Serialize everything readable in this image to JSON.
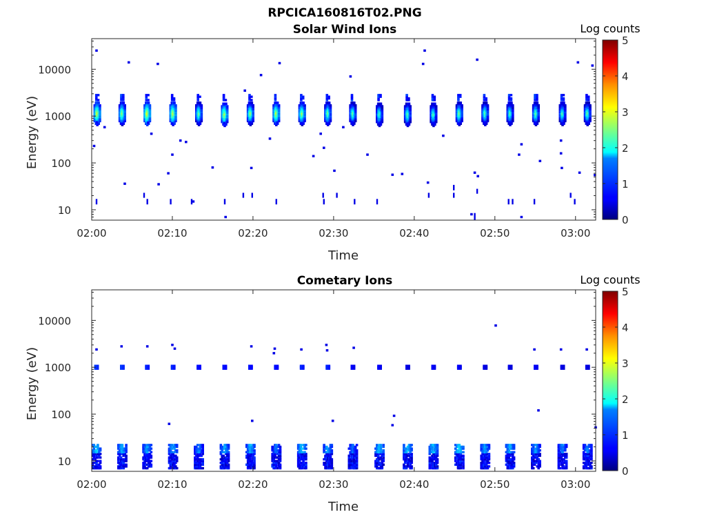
{
  "figure_title": "RPCICA160816T02.PNG",
  "chart_data": [
    {
      "type": "heatmap",
      "title": "Solar Wind Ions",
      "xlabel": "Time",
      "ylabel": "Energy (eV)",
      "x_ticks": [
        "02:00",
        "02:10",
        "02:20",
        "02:30",
        "02:40",
        "02:50",
        "03:00"
      ],
      "x_range": [
        "02:00",
        "03:02.5"
      ],
      "y_ticks": [
        10,
        100,
        1000,
        10000
      ],
      "y_tick_labels": [
        "10",
        "100",
        "1000",
        "10000"
      ],
      "y_scale": "log",
      "y_range": [
        6,
        45000
      ],
      "colorbar": {
        "label": "Log counts",
        "range": [
          0,
          5
        ],
        "ticks": [
          "0",
          "1",
          "2",
          "3",
          "4",
          "5"
        ],
        "colormap": "jet"
      },
      "sweep_period_min": 3.2,
      "bursts": [
        {
          "t": 0.7,
          "e_center": 1150,
          "peak": 3.0
        },
        {
          "t": 3.8,
          "e_center": 1150,
          "peak": 2.8
        },
        {
          "t": 6.9,
          "e_center": 1150,
          "peak": 3.1
        },
        {
          "t": 10.1,
          "e_center": 1150,
          "peak": 3.0
        },
        {
          "t": 13.3,
          "e_center": 1150,
          "peak": 2.6
        },
        {
          "t": 16.5,
          "e_center": 1100,
          "peak": 2.9
        },
        {
          "t": 19.7,
          "e_center": 1150,
          "peak": 2.7
        },
        {
          "t": 22.9,
          "e_center": 1150,
          "peak": 2.9
        },
        {
          "t": 26.1,
          "e_center": 1150,
          "peak": 2.8
        },
        {
          "t": 29.3,
          "e_center": 1150,
          "peak": 2.6
        },
        {
          "t": 32.4,
          "e_center": 1150,
          "peak": 2.5
        },
        {
          "t": 35.7,
          "e_center": 1100,
          "peak": 2.4
        },
        {
          "t": 39.2,
          "e_center": 1100,
          "peak": 2.5
        },
        {
          "t": 42.4,
          "e_center": 1100,
          "peak": 2.4
        },
        {
          "t": 45.6,
          "e_center": 1150,
          "peak": 2.6
        },
        {
          "t": 48.8,
          "e_center": 1150,
          "peak": 2.5
        },
        {
          "t": 51.9,
          "e_center": 1150,
          "peak": 2.4
        },
        {
          "t": 55.1,
          "e_center": 1150,
          "peak": 2.5
        },
        {
          "t": 58.4,
          "e_center": 1150,
          "peak": 2.4
        },
        {
          "t": 61.5,
          "e_center": 1150,
          "peak": 2.5
        }
      ],
      "scattered_points": [
        {
          "t": 0.6,
          "e": 25000
        },
        {
          "t": 4.6,
          "e": 14000
        },
        {
          "t": 8.2,
          "e": 13000
        },
        {
          "t": 19.0,
          "e": 3500
        },
        {
          "t": 21.0,
          "e": 7500
        },
        {
          "t": 23.3,
          "e": 13500
        },
        {
          "t": 32.1,
          "e": 7000
        },
        {
          "t": 41.3,
          "e": 25000
        },
        {
          "t": 41.1,
          "e": 13000
        },
        {
          "t": 47.8,
          "e": 16000
        },
        {
          "t": 60.3,
          "e": 14000
        },
        {
          "t": 62.1,
          "e": 12000
        },
        {
          "t": 0.3,
          "e": 230
        },
        {
          "t": 1.6,
          "e": 580
        },
        {
          "t": 7.4,
          "e": 420
        },
        {
          "t": 10.0,
          "e": 150
        },
        {
          "t": 11.0,
          "e": 300
        },
        {
          "t": 11.7,
          "e": 280
        },
        {
          "t": 9.5,
          "e": 60
        },
        {
          "t": 15.0,
          "e": 80
        },
        {
          "t": 19.8,
          "e": 78
        },
        {
          "t": 22.1,
          "e": 330
        },
        {
          "t": 27.5,
          "e": 140
        },
        {
          "t": 28.4,
          "e": 420
        },
        {
          "t": 28.8,
          "e": 210
        },
        {
          "t": 30.1,
          "e": 68
        },
        {
          "t": 31.2,
          "e": 580
        },
        {
          "t": 34.2,
          "e": 150
        },
        {
          "t": 37.3,
          "e": 56
        },
        {
          "t": 38.5,
          "e": 58
        },
        {
          "t": 41.7,
          "e": 38
        },
        {
          "t": 43.6,
          "e": 380
        },
        {
          "t": 47.5,
          "e": 62
        },
        {
          "t": 47.9,
          "e": 52
        },
        {
          "t": 53.0,
          "e": 150
        },
        {
          "t": 53.3,
          "e": 250
        },
        {
          "t": 55.6,
          "e": 110
        },
        {
          "t": 58.2,
          "e": 300
        },
        {
          "t": 58.2,
          "e": 160
        },
        {
          "t": 58.3,
          "e": 78
        },
        {
          "t": 60.5,
          "e": 62
        },
        {
          "t": 62.4,
          "e": 55
        },
        {
          "t": 4.1,
          "e": 36
        },
        {
          "t": 8.3,
          "e": 35
        },
        {
          "t": 12.6,
          "e": 15
        },
        {
          "t": 16.6,
          "e": 7
        },
        {
          "t": 47.1,
          "e": 8
        },
        {
          "t": 53.3,
          "e": 7
        }
      ],
      "low_energy_streaks": [
        {
          "t": 0.6,
          "e_low": 13,
          "e_high": 17
        },
        {
          "t": 6.5,
          "e_low": 18,
          "e_high": 23
        },
        {
          "t": 6.9,
          "e_low": 13,
          "e_high": 17
        },
        {
          "t": 9.8,
          "e_low": 13,
          "e_high": 17
        },
        {
          "t": 12.4,
          "e_low": 13,
          "e_high": 17
        },
        {
          "t": 16.5,
          "e_low": 13,
          "e_high": 17
        },
        {
          "t": 18.8,
          "e_low": 18,
          "e_high": 23
        },
        {
          "t": 19.9,
          "e_low": 18,
          "e_high": 23
        },
        {
          "t": 22.9,
          "e_low": 13,
          "e_high": 17
        },
        {
          "t": 28.7,
          "e_low": 18,
          "e_high": 23
        },
        {
          "t": 28.8,
          "e_low": 13,
          "e_high": 17
        },
        {
          "t": 30.4,
          "e_low": 18,
          "e_high": 23
        },
        {
          "t": 32.6,
          "e_low": 13,
          "e_high": 17
        },
        {
          "t": 35.4,
          "e_low": 13,
          "e_high": 17
        },
        {
          "t": 41.8,
          "e_low": 18,
          "e_high": 23
        },
        {
          "t": 44.9,
          "e_low": 26,
          "e_high": 34
        },
        {
          "t": 44.9,
          "e_low": 18,
          "e_high": 23
        },
        {
          "t": 47.5,
          "e_low": 6,
          "e_high": 8.5
        },
        {
          "t": 47.8,
          "e_low": 22,
          "e_high": 28
        },
        {
          "t": 51.7,
          "e_low": 13,
          "e_high": 17
        },
        {
          "t": 52.2,
          "e_low": 13,
          "e_high": 17
        },
        {
          "t": 54.9,
          "e_low": 13,
          "e_high": 17
        },
        {
          "t": 59.4,
          "e_low": 18,
          "e_high": 23
        },
        {
          "t": 59.9,
          "e_low": 13,
          "e_high": 17
        }
      ]
    },
    {
      "type": "heatmap",
      "title": "Cometary Ions",
      "xlabel": "Time",
      "ylabel": "Energy (eV)",
      "x_ticks": [
        "02:00",
        "02:10",
        "02:20",
        "02:30",
        "02:40",
        "02:50",
        "03:00"
      ],
      "x_range": [
        "02:00",
        "03:02.5"
      ],
      "y_ticks": [
        10,
        100,
        1000,
        10000
      ],
      "y_tick_labels": [
        "10",
        "100",
        "1000",
        "10000"
      ],
      "y_scale": "log",
      "y_range": [
        6,
        45000
      ],
      "colorbar": {
        "label": "Log counts",
        "range": [
          0,
          5
        ],
        "ticks": [
          "0",
          "1",
          "2",
          "3",
          "4",
          "5"
        ],
        "colormap": "jet"
      },
      "sweep_period_min": 3.2,
      "bursts": [
        {
          "t": 0.6,
          "peak_1k": 0.9,
          "peak_low": 1.6
        },
        {
          "t": 3.8,
          "peak_1k": 0.9,
          "peak_low": 1.5
        },
        {
          "t": 6.9,
          "peak_1k": 0.8,
          "peak_low": 1.4
        },
        {
          "t": 10.1,
          "peak_1k": 0.8,
          "peak_low": 1.5
        },
        {
          "t": 13.3,
          "peak_1k": 0.7,
          "peak_low": 1.3
        },
        {
          "t": 16.5,
          "peak_1k": 0.7,
          "peak_low": 1.5
        },
        {
          "t": 19.7,
          "peak_1k": 0.7,
          "peak_low": 1.5
        },
        {
          "t": 22.9,
          "peak_1k": 0.7,
          "peak_low": 1.2
        },
        {
          "t": 26.1,
          "peak_1k": 0.8,
          "peak_low": 1.6
        },
        {
          "t": 29.3,
          "peak_1k": 0.8,
          "peak_low": 1.5
        },
        {
          "t": 32.4,
          "peak_1k": 0.6,
          "peak_low": 1.2
        },
        {
          "t": 35.7,
          "peak_1k": 0.6,
          "peak_low": 1.6
        },
        {
          "t": 39.2,
          "peak_1k": 0.5,
          "peak_low": 1.6
        },
        {
          "t": 42.4,
          "peak_1k": 0.6,
          "peak_low": 1.6
        },
        {
          "t": 45.6,
          "peak_1k": 0.6,
          "peak_low": 1.7
        },
        {
          "t": 48.8,
          "peak_1k": 0.5,
          "peak_low": 1.4
        },
        {
          "t": 51.9,
          "peak_1k": 0.5,
          "peak_low": 1.5
        },
        {
          "t": 55.1,
          "peak_1k": 0.6,
          "peak_low": 1.4
        },
        {
          "t": 58.4,
          "peak_1k": 0.5,
          "peak_low": 1.3
        },
        {
          "t": 61.5,
          "peak_1k": 0.5,
          "peak_low": 1.3
        }
      ],
      "scattered_points": [
        {
          "t": 0.6,
          "e": 2400
        },
        {
          "t": 3.7,
          "e": 2800
        },
        {
          "t": 6.9,
          "e": 2800
        },
        {
          "t": 10.0,
          "e": 3000
        },
        {
          "t": 10.3,
          "e": 2500
        },
        {
          "t": 19.8,
          "e": 2800
        },
        {
          "t": 22.7,
          "e": 2500
        },
        {
          "t": 22.6,
          "e": 2000
        },
        {
          "t": 26.0,
          "e": 2400
        },
        {
          "t": 29.1,
          "e": 3000
        },
        {
          "t": 29.2,
          "e": 2300
        },
        {
          "t": 32.5,
          "e": 2600
        },
        {
          "t": 54.9,
          "e": 2400
        },
        {
          "t": 58.2,
          "e": 2400
        },
        {
          "t": 61.4,
          "e": 2400
        },
        {
          "t": 50.1,
          "e": 7800
        },
        {
          "t": 9.6,
          "e": 62
        },
        {
          "t": 19.9,
          "e": 72
        },
        {
          "t": 29.9,
          "e": 72
        },
        {
          "t": 37.5,
          "e": 92
        },
        {
          "t": 37.3,
          "e": 58
        },
        {
          "t": 55.4,
          "e": 120
        },
        {
          "t": 62.5,
          "e": 52
        }
      ]
    }
  ]
}
